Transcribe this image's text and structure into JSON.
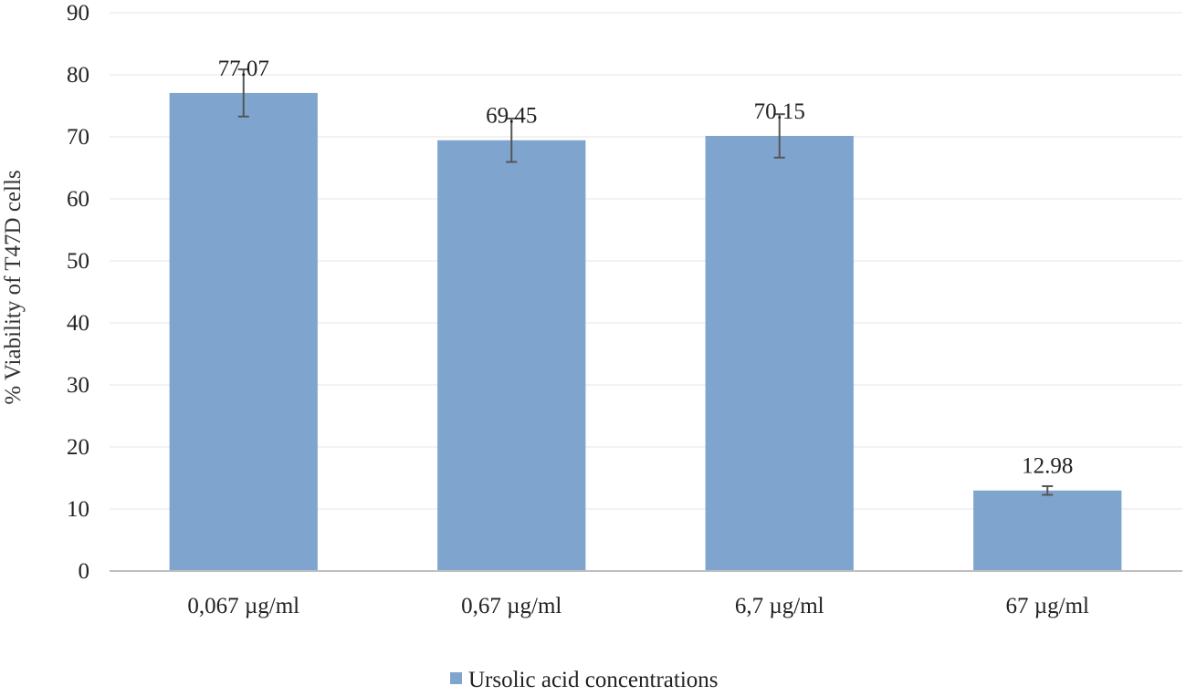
{
  "chart_data": {
    "type": "bar",
    "categories": [
      "0,067 µg/ml",
      "0,67 µg/ml",
      "6,7 µg/ml",
      "67 µg/ml"
    ],
    "series": [
      {
        "name": "Ursolic acid concentrations",
        "values": [
          77.07,
          69.45,
          70.15,
          12.98
        ],
        "value_labels": [
          "77.07",
          "69.45",
          "70.15",
          "12.98"
        ],
        "error": [
          3.8,
          3.5,
          3.5,
          0.7
        ]
      }
    ],
    "ylabel": "%  Viability of  T47D cells",
    "xlabel": "",
    "ylim": [
      0,
      90
    ],
    "yticks": [
      0,
      10,
      20,
      30,
      40,
      50,
      60,
      70,
      80,
      90
    ],
    "grid": true,
    "legend": "bottom",
    "colors": {
      "bar": "#7fa5cf",
      "error": "#555555",
      "grid": "#e6e6e6",
      "axis": "#bfbfbf"
    }
  }
}
